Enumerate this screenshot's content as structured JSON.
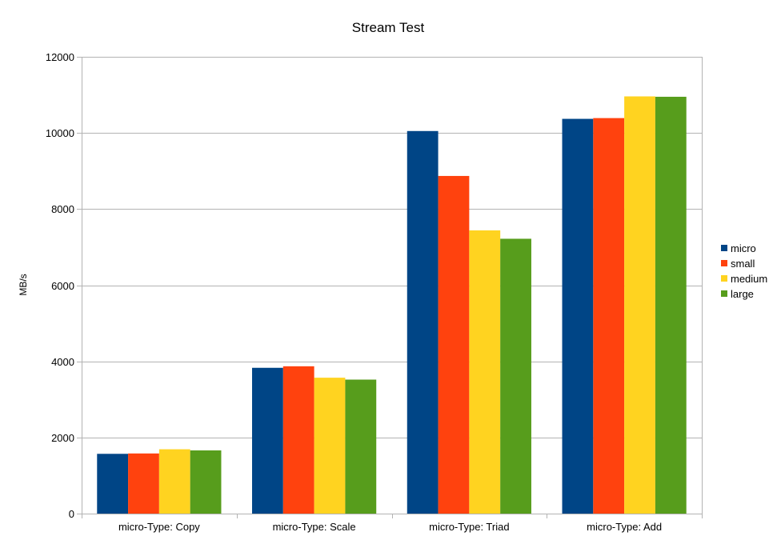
{
  "chart_data": {
    "type": "bar",
    "title": "Stream Test",
    "xlabel": "",
    "ylabel": "MB/s",
    "ylim": [
      0,
      12000
    ],
    "yticks": [
      0,
      2000,
      4000,
      6000,
      8000,
      10000,
      12000
    ],
    "grid": true,
    "legend_position": "right",
    "categories": [
      "micro-Type: Copy",
      "micro-Type: Scale",
      "micro-Type: Triad",
      "micro-Type: Add"
    ],
    "series": [
      {
        "name": "micro",
        "color": "#004586",
        "values": [
          1570,
          3830,
          10050,
          10370
        ]
      },
      {
        "name": "small",
        "color": "#ff420e",
        "values": [
          1580,
          3870,
          8870,
          10390
        ]
      },
      {
        "name": "medium",
        "color": "#ffd320",
        "values": [
          1690,
          3570,
          7440,
          10960
        ]
      },
      {
        "name": "large",
        "color": "#579d1c",
        "values": [
          1660,
          3520,
          7220,
          10950
        ]
      }
    ]
  }
}
